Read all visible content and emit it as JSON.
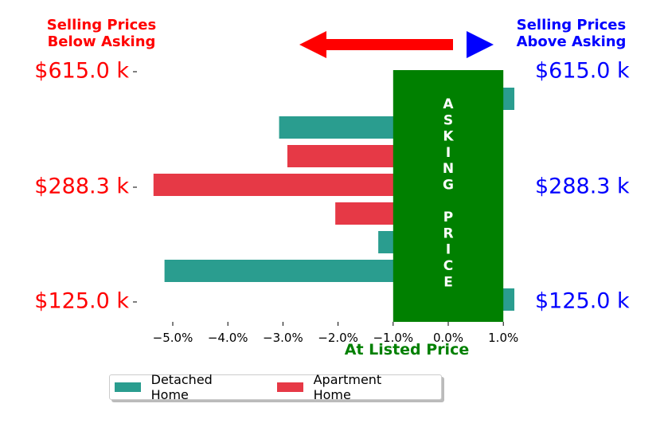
{
  "header": {
    "left_line1": "Selling Prices",
    "left_line2": "Below Asking",
    "right_line1": "Selling Prices",
    "right_line2": "Above Asking"
  },
  "colors": {
    "detached": "#2a9d8f",
    "apartment": "#e63946",
    "asking_band": "#008000",
    "left_labels": "#ff0000",
    "right_labels": "#0000ff",
    "arrow_left": "#ff0000",
    "arrow_right": "#0000ff"
  },
  "chart_data": {
    "type": "bar",
    "orientation": "horizontal",
    "x_tick_labels": [
      "−5.0%",
      "−4.0%",
      "−3.0%",
      "−2.0%",
      "−1.0%",
      "0.0%",
      "1.0%"
    ],
    "x_ticks": [
      -5,
      -4,
      -3,
      -2,
      -1,
      0,
      1
    ],
    "xlim": [
      -5.5,
      1.2
    ],
    "xlabel": "At Listed Price",
    "band_range": [
      -1.0,
      1.0
    ],
    "band_text": [
      "A",
      "S",
      "K",
      "I",
      "N",
      "G",
      "",
      "P",
      "R",
      "I",
      "C",
      "E"
    ],
    "price_labels": [
      "$615.0 k",
      "$288.3 k",
      "$125.0 k"
    ],
    "series": [
      {
        "name": "Detached Home",
        "color_key": "detached"
      },
      {
        "name": "Apartment Home",
        "color_key": "apartment"
      }
    ],
    "bars": [
      {
        "series": 0,
        "value": 1.2
      },
      {
        "series": 0,
        "value": -3.07
      },
      {
        "series": 1,
        "value": -2.92
      },
      {
        "series": 1,
        "value": -5.35
      },
      {
        "series": 1,
        "value": -2.05
      },
      {
        "series": 0,
        "value": -1.27
      },
      {
        "series": 0,
        "value": -5.15
      },
      {
        "series": 0,
        "value": 1.2
      }
    ],
    "legend_position": "bottom-left"
  },
  "legend": {
    "detached_label": "Detached Home",
    "apartment_label": "Apartment Home"
  }
}
